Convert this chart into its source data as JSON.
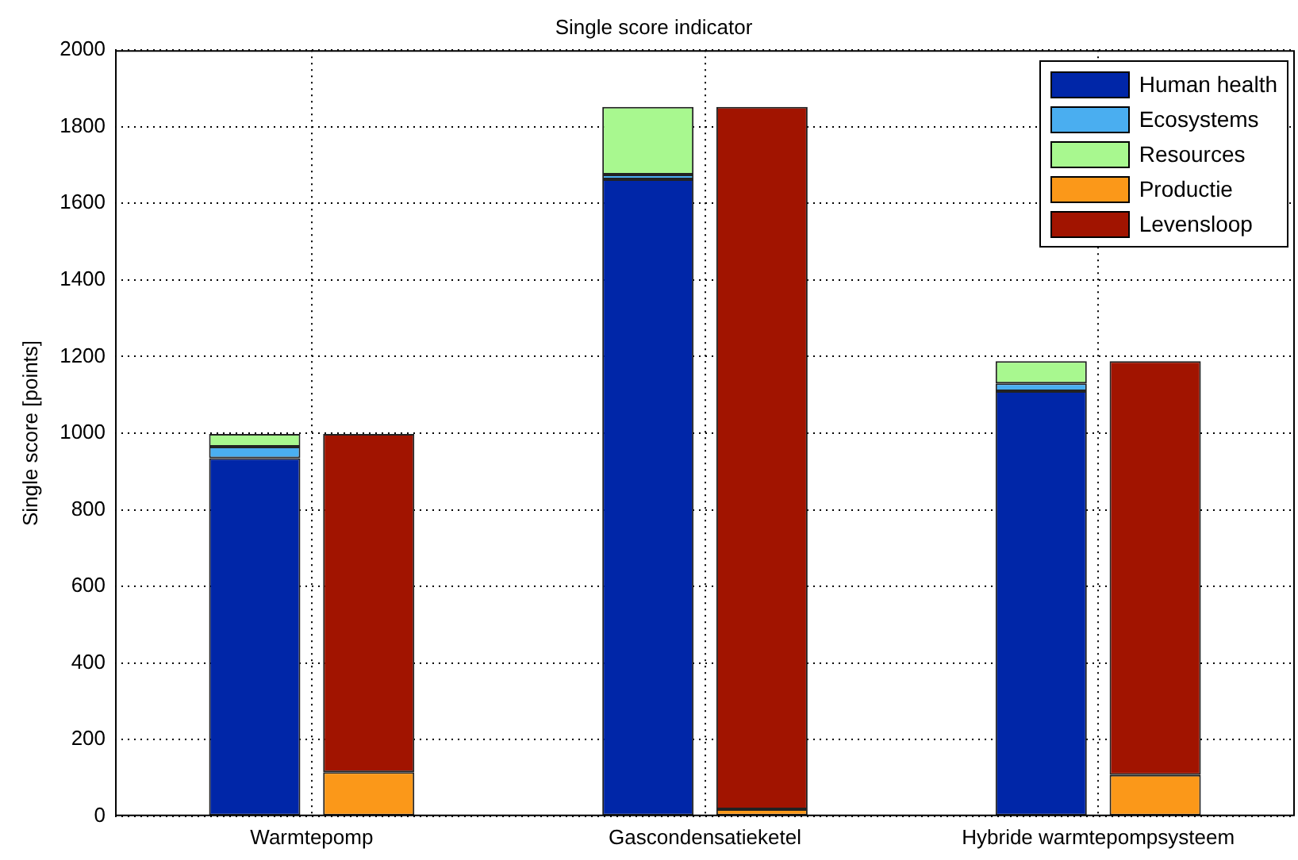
{
  "chart_data": {
    "type": "bar",
    "title": "Single score indicator",
    "ylabel": "Single score [points]",
    "categories": [
      "Warmtepomp",
      "Gascondensatieketel",
      "Hybride warmtepompsysteem"
    ],
    "ylim": [
      0,
      2000
    ],
    "yticks": [
      0,
      200,
      400,
      600,
      800,
      1000,
      1200,
      1400,
      1600,
      1800,
      2000
    ],
    "grid": true,
    "legend": "top right",
    "series": [
      {
        "name": "Human health",
        "color": "#0026a8",
        "values": [
          935,
          1663,
          1110
        ],
        "base": [
          0,
          0,
          0
        ]
      },
      {
        "name": "Ecosystems",
        "color": "#4aaef0",
        "values": [
          30,
          12,
          20
        ],
        "base": [
          935,
          1663,
          1110
        ]
      },
      {
        "name": "Resources",
        "color": "#a8f88f",
        "values": [
          33,
          177,
          58
        ],
        "base": [
          965,
          1675,
          1130
        ]
      },
      {
        "name": "Productie",
        "color": "#fb9819",
        "values": [
          115,
          18,
          108
        ],
        "base": [
          0,
          0,
          0
        ]
      },
      {
        "name": "Levensloop",
        "color": "#a11400",
        "values": [
          883,
          1834,
          1080
        ],
        "base": [
          115,
          18,
          108
        ]
      }
    ]
  }
}
